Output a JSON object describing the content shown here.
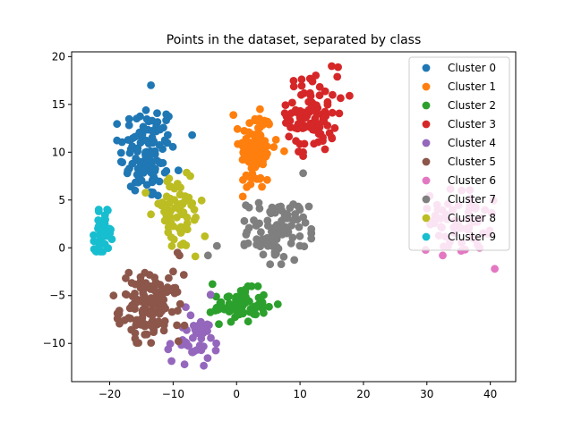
{
  "chart_data": {
    "type": "scatter",
    "title": "Points in the dataset, separated by class",
    "xlabel": "",
    "ylabel": "",
    "xlim": [
      -26,
      44
    ],
    "ylim": [
      -14,
      20.5
    ],
    "xticks": [
      -20,
      -10,
      0,
      10,
      20,
      30,
      40
    ],
    "yticks": [
      -10,
      -5,
      0,
      5,
      10,
      15,
      20
    ],
    "grid": false,
    "legend_position": "top-right",
    "series": [
      {
        "name": "Cluster 0",
        "color": "#1f77b4",
        "center": [
          -14,
          10
        ],
        "spread": [
          2.2,
          2.6
        ],
        "count": 110,
        "points": [
          [
            -13.5,
            17.0
          ],
          [
            -7.0,
            11.8
          ],
          [
            -18.2,
            9.0
          ],
          [
            -16,
            6
          ]
        ]
      },
      {
        "name": "Cluster 1",
        "color": "#ff7f0e",
        "center": [
          3,
          10.2
        ],
        "spread": [
          1.3,
          2.2
        ],
        "count": 90,
        "points": [
          [
            -0.5,
            13.9
          ],
          [
            3.7,
            14.5
          ],
          [
            7.5,
            10.1
          ],
          [
            6.2,
            11.3
          ]
        ]
      },
      {
        "name": "Cluster 2",
        "color": "#2ca02c",
        "center": [
          0.5,
          -6
        ],
        "spread": [
          2.1,
          0.9
        ],
        "count": 70,
        "points": [
          [
            -3.8,
            -3.8
          ],
          [
            6.5,
            -5.9
          ],
          [
            -3.0,
            -6.5
          ]
        ]
      },
      {
        "name": "Cluster 3",
        "color": "#d62728",
        "center": [
          12,
          14
        ],
        "spread": [
          2.0,
          2.0
        ],
        "count": 90,
        "points": [
          [
            15.0,
            19.0
          ],
          [
            16.0,
            18.9
          ],
          [
            17.8,
            15.9
          ],
          [
            10.5,
            10.0
          ],
          [
            8.5,
            12.6
          ]
        ]
      },
      {
        "name": "Cluster 4",
        "color": "#9467bd",
        "center": [
          -7,
          -9.7
        ],
        "spread": [
          2.0,
          1.2
        ],
        "count": 40,
        "points": [
          [
            -4.1,
            -4.9
          ],
          [
            -8.0,
            -6.2
          ],
          [
            -8.2,
            -12.2
          ],
          [
            -3.2,
            -10.0
          ]
        ]
      },
      {
        "name": "Cluster 5",
        "color": "#8c564b",
        "center": [
          -13.5,
          -6.2
        ],
        "spread": [
          2.4,
          1.7
        ],
        "count": 130,
        "points": [
          [
            -17.0,
            -2.6
          ],
          [
            -19.4,
            -5.0
          ],
          [
            -16.0,
            -9.5
          ],
          [
            -9.3,
            -0.5
          ],
          [
            -9.0,
            -0.8
          ]
        ]
      },
      {
        "name": "Cluster 6",
        "color": "#e377c2",
        "center": [
          35,
          2.8
        ],
        "spread": [
          2.5,
          1.6
        ],
        "count": 60,
        "points": [
          [
            30.0,
            4.1
          ],
          [
            40.7,
            -2.2
          ],
          [
            38.0,
            0.3
          ],
          [
            32.5,
            -0.8
          ]
        ]
      },
      {
        "name": "Cluster 7",
        "color": "#7f7f7f",
        "center": [
          6.5,
          1.8
        ],
        "spread": [
          2.4,
          1.6
        ],
        "count": 90,
        "points": [
          [
            -3.1,
            0.2
          ],
          [
            3.5,
            4.7
          ],
          [
            10.5,
            3.2
          ],
          [
            10.5,
            7.8
          ],
          [
            -4.5,
            -0.8
          ]
        ]
      },
      {
        "name": "Cluster 8",
        "color": "#bcbd22",
        "center": [
          -9.5,
          3.5
        ],
        "spread": [
          2.2,
          2.0
        ],
        "count": 60,
        "points": [
          [
            -7.3,
            7.5
          ],
          [
            -10.3,
            1.1
          ],
          [
            -5.0,
            1.2
          ],
          [
            -13.5,
            3.5
          ]
        ]
      },
      {
        "name": "Cluster 9",
        "color": "#17becf",
        "center": [
          -21,
          1.8
        ],
        "spread": [
          0.7,
          1.0
        ],
        "count": 45,
        "points": [
          [
            -22.5,
            0.7
          ],
          [
            -20.3,
            3.9
          ],
          [
            -21.1,
            -0.4
          ]
        ]
      }
    ]
  }
}
